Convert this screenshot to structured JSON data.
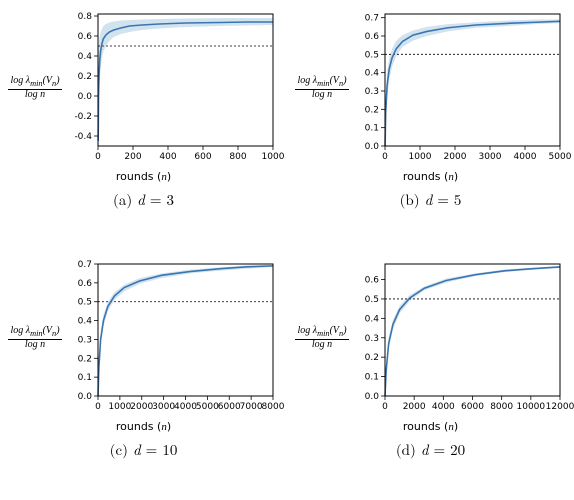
{
  "figure": {
    "background_color": "#ffffff",
    "line_color": "#3b75af",
    "fill_color": "#7eaed3",
    "fill_opacity": 0.35,
    "threshold_color": "#000000",
    "threshold_dash": "2,2",
    "axis_color": "#000000",
    "tick_fontsize": 9,
    "label_fontsize": 11,
    "caption_fontsize": 15,
    "ylabel_html": "log λ<sub>min</sub>(V<sub>n</sub>) / log n",
    "xlabel": "rounds (n)",
    "panels": [
      {
        "id": "a",
        "d": 3,
        "xlim": [
          0,
          1000
        ],
        "xticks": [
          0,
          200,
          400,
          600,
          800,
          1000
        ],
        "ylim": [
          -0.5,
          0.82
        ],
        "yticks": [
          -0.4,
          -0.2,
          0.0,
          0.2,
          0.4,
          0.6,
          0.8
        ],
        "threshold": 0.5,
        "mean_x": [
          1,
          3,
          6,
          10,
          15,
          22,
          30,
          45,
          65,
          90,
          130,
          180,
          250,
          350,
          500,
          700,
          850,
          1000
        ],
        "mean_y": [
          -0.45,
          0.0,
          0.22,
          0.36,
          0.45,
          0.52,
          0.57,
          0.61,
          0.64,
          0.66,
          0.68,
          0.7,
          0.71,
          0.72,
          0.73,
          0.735,
          0.74,
          0.74
        ],
        "lo_y": [
          -0.5,
          -0.35,
          0.0,
          0.17,
          0.28,
          0.37,
          0.44,
          0.5,
          0.55,
          0.59,
          0.62,
          0.64,
          0.66,
          0.675,
          0.69,
          0.7,
          0.705,
          0.71
        ],
        "hi_y": [
          0.3,
          0.45,
          0.55,
          0.6,
          0.64,
          0.67,
          0.7,
          0.72,
          0.735,
          0.745,
          0.755,
          0.76,
          0.765,
          0.77,
          0.775,
          0.78,
          0.78,
          0.78
        ]
      },
      {
        "id": "b",
        "d": 5,
        "xlim": [
          0,
          5000
        ],
        "xticks": [
          0,
          1000,
          2000,
          3000,
          4000,
          5000
        ],
        "ylim": [
          0.0,
          0.72
        ],
        "yticks": [
          0.0,
          0.1,
          0.2,
          0.3,
          0.4,
          0.5,
          0.6,
          0.7
        ],
        "threshold": 0.5,
        "mean_x": [
          1,
          20,
          60,
          120,
          200,
          320,
          500,
          800,
          1200,
          1800,
          2600,
          3600,
          4300,
          5000
        ],
        "mean_y": [
          0.0,
          0.18,
          0.33,
          0.42,
          0.48,
          0.53,
          0.57,
          0.605,
          0.625,
          0.645,
          0.66,
          0.67,
          0.675,
          0.68
        ],
        "lo_y": [
          0.0,
          0.1,
          0.26,
          0.36,
          0.43,
          0.49,
          0.54,
          0.575,
          0.6,
          0.625,
          0.645,
          0.655,
          0.665,
          0.67
        ],
        "hi_y": [
          0.05,
          0.26,
          0.4,
          0.48,
          0.53,
          0.575,
          0.605,
          0.63,
          0.65,
          0.665,
          0.675,
          0.685,
          0.69,
          0.69
        ]
      },
      {
        "id": "c",
        "d": 10,
        "xlim": [
          0,
          8000
        ],
        "xticks": [
          0,
          1000,
          2000,
          3000,
          4000,
          5000,
          6000,
          7000,
          8000
        ],
        "ylim": [
          0.0,
          0.7
        ],
        "yticks": [
          0.0,
          0.1,
          0.2,
          0.3,
          0.4,
          0.5,
          0.6,
          0.7
        ],
        "threshold": 0.5,
        "mean_x": [
          1,
          40,
          120,
          250,
          450,
          750,
          1200,
          1900,
          2900,
          4200,
          5600,
          6800,
          8000
        ],
        "mean_y": [
          0.0,
          0.15,
          0.3,
          0.4,
          0.475,
          0.53,
          0.575,
          0.61,
          0.64,
          0.66,
          0.675,
          0.685,
          0.69
        ],
        "lo_y": [
          0.0,
          0.11,
          0.26,
          0.37,
          0.45,
          0.51,
          0.555,
          0.595,
          0.625,
          0.65,
          0.665,
          0.675,
          0.685
        ],
        "hi_y": [
          0.03,
          0.19,
          0.34,
          0.43,
          0.5,
          0.55,
          0.59,
          0.625,
          0.65,
          0.67,
          0.683,
          0.692,
          0.695
        ]
      },
      {
        "id": "d",
        "d": 20,
        "xlim": [
          0,
          12000
        ],
        "xticks": [
          0,
          2000,
          4000,
          6000,
          8000,
          10000,
          12000
        ],
        "ylim": [
          0.0,
          0.68
        ],
        "yticks": [
          0.0,
          0.1,
          0.2,
          0.3,
          0.4,
          0.5,
          0.6
        ],
        "threshold": 0.5,
        "mean_x": [
          1,
          80,
          250,
          550,
          1000,
          1700,
          2700,
          4200,
          6200,
          8200,
          10000,
          12000
        ],
        "mean_y": [
          0.0,
          0.13,
          0.27,
          0.37,
          0.445,
          0.505,
          0.555,
          0.595,
          0.625,
          0.645,
          0.655,
          0.665
        ],
        "lo_y": [
          0.0,
          0.1,
          0.24,
          0.345,
          0.425,
          0.49,
          0.545,
          0.585,
          0.618,
          0.638,
          0.65,
          0.66
        ],
        "hi_y": [
          0.02,
          0.16,
          0.3,
          0.395,
          0.465,
          0.52,
          0.565,
          0.605,
          0.632,
          0.652,
          0.66,
          0.67
        ]
      }
    ]
  }
}
